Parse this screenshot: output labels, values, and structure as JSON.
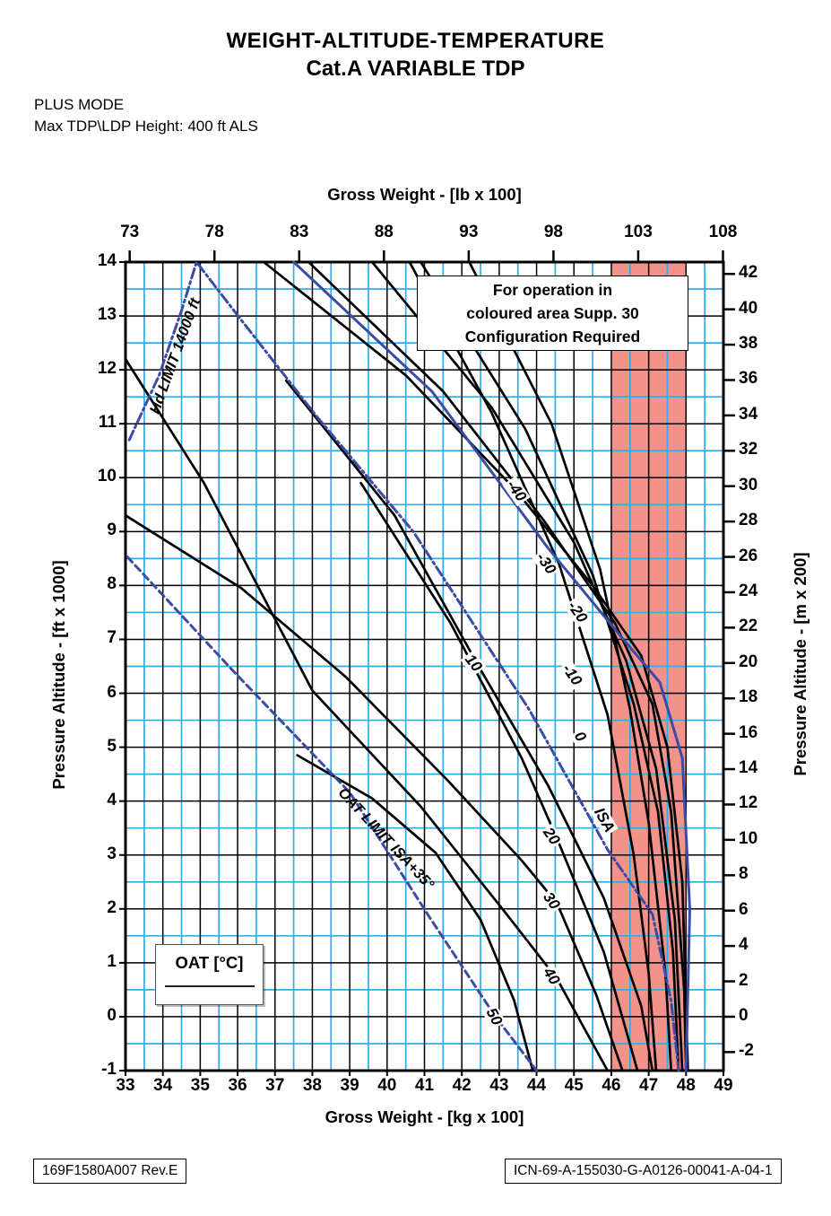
{
  "header": {
    "title_line1": "WEIGHT-ALTITUDE-TEMPERATURE",
    "title_line2": "Cat.A VARIABLE TDP",
    "mode_line": "PLUS MODE",
    "height_line": "Max TDP\\LDP Height: 400 ft ALS"
  },
  "note_box": {
    "line1": "For operation in",
    "line2": "coloured area Supp. 30",
    "line3": "Configuration Required"
  },
  "legend_box": {
    "title": "OAT [°C]"
  },
  "footer": {
    "left_ref": "169F1580A007 Rev.E",
    "right_ref": "ICN-69-A-155030-G-A0126-00041-A-04-1"
  },
  "chart_data": {
    "type": "line",
    "title": "WEIGHT-ALTITUDE-TEMPERATURE Cat.A VARIABLE TDP",
    "axes": {
      "bottom": {
        "label": "Gross Weight - [kg x 100]",
        "range": [
          33,
          49
        ],
        "ticks": [
          33,
          34,
          35,
          36,
          37,
          38,
          39,
          40,
          41,
          42,
          43,
          44,
          45,
          46,
          47,
          48,
          49
        ]
      },
      "top": {
        "label": "Gross Weight - [lb x 100]",
        "ticks": [
          73,
          78,
          83,
          88,
          93,
          98,
          103,
          108
        ]
      },
      "left": {
        "label": "Pressure Altitude - [ft x 1000]",
        "range": [
          -1,
          14
        ],
        "ticks": [
          14,
          13,
          12,
          11,
          10,
          9,
          8,
          7,
          6,
          5,
          4,
          3,
          2,
          1,
          0,
          -1
        ]
      },
      "right": {
        "label": "Pressure Altitude - [m x 200]",
        "ticks": [
          42,
          40,
          38,
          36,
          34,
          32,
          30,
          28,
          26,
          24,
          22,
          20,
          18,
          16,
          14,
          12,
          10,
          8,
          6,
          4,
          2,
          0,
          -2
        ]
      }
    },
    "grid": {
      "major_step": 1,
      "minor_step": 0.5,
      "major_color": "#000000",
      "minor_color": "#2eade6"
    },
    "shaded_region": {
      "x_from": 46,
      "x_to": 48,
      "color": "#f2928b",
      "meaning": "coloured area requiring Supp. 30 Configuration"
    },
    "series": [
      {
        "name": "oat-minus-40",
        "label": "-40",
        "color": "#000000",
        "points": [
          [
            36.7,
            14
          ],
          [
            40.5,
            11.9
          ],
          [
            43.4,
            9.8
          ],
          [
            45.5,
            8.0
          ],
          [
            46.8,
            6.7
          ],
          [
            47.5,
            5.0
          ],
          [
            47.9,
            2.5
          ],
          [
            48.05,
            -1
          ]
        ],
        "label_pos": [
          43.45,
          9.75
        ],
        "label_rot": 55
      },
      {
        "name": "oat-minus-30",
        "label": "-30",
        "color": "#000000",
        "points": [
          [
            37.9,
            14
          ],
          [
            41.5,
            11.6
          ],
          [
            44.2,
            9.2
          ],
          [
            46.1,
            7.3
          ],
          [
            47.1,
            5.8
          ],
          [
            47.6,
            3.8
          ],
          [
            47.95,
            0.5
          ],
          [
            48.0,
            -1
          ]
        ],
        "label_pos": [
          44.25,
          8.4
        ],
        "label_rot": 55
      },
      {
        "name": "oat-minus-20",
        "label": "-20",
        "color": "#000000",
        "points": [
          [
            39.6,
            14
          ],
          [
            42.8,
            11.3
          ],
          [
            45.0,
            8.8
          ],
          [
            46.4,
            6.6
          ],
          [
            47.2,
            4.6
          ],
          [
            47.7,
            1.8
          ],
          [
            47.9,
            -1
          ]
        ],
        "label_pos": [
          45.1,
          7.5
        ],
        "label_rot": 55
      },
      {
        "name": "oat-minus-10",
        "label": "-10",
        "color": "#000000",
        "points": [
          [
            40.9,
            14
          ],
          [
            43.7,
            10.9
          ],
          [
            45.5,
            8.2
          ],
          [
            46.6,
            5.8
          ],
          [
            47.25,
            3.8
          ],
          [
            47.65,
            1.2
          ],
          [
            47.8,
            -1
          ]
        ],
        "label_pos": [
          44.95,
          6.35
        ],
        "label_rot": 55
      },
      {
        "name": "oat-0",
        "label": "0",
        "color": "#000000",
        "points": [
          [
            42.2,
            14
          ],
          [
            44.4,
            11.0
          ],
          [
            45.7,
            8.3
          ],
          [
            46.5,
            5.7
          ],
          [
            47.0,
            3.6
          ],
          [
            47.45,
            0.8
          ],
          [
            47.6,
            -1
          ]
        ],
        "label_pos": [
          45.15,
          5.2
        ],
        "label_rot": 58
      },
      {
        "name": "isa-line",
        "label": "ISA",
        "color": "#000000",
        "points": [
          [
            40.6,
            14
          ],
          [
            42.8,
            11.2
          ],
          [
            44.6,
            8.4
          ],
          [
            45.9,
            5.6
          ],
          [
            46.6,
            3.0
          ],
          [
            47.0,
            0.8
          ],
          [
            47.2,
            -1
          ]
        ],
        "label_pos": [
          45.8,
          3.65
        ],
        "label_rot": 60
      },
      {
        "name": "oat-10",
        "label": "10",
        "color": "#000000",
        "points": [
          [
            37.3,
            11.8
          ],
          [
            40.2,
            9.3
          ],
          [
            42.45,
            6.5
          ],
          [
            44.3,
            4.3
          ],
          [
            45.8,
            2.2
          ],
          [
            46.8,
            0.2
          ],
          [
            47.1,
            -1
          ]
        ],
        "label_pos": [
          42.3,
          6.55
        ],
        "label_rot": 52
      },
      {
        "name": "oat-20",
        "label": "20",
        "color": "#000000",
        "points": [
          [
            39.3,
            9.9
          ],
          [
            41.7,
            7.3
          ],
          [
            43.6,
            4.8
          ],
          [
            44.55,
            3.3
          ],
          [
            45.8,
            1.2
          ],
          [
            46.7,
            -1
          ]
        ],
        "label_pos": [
          44.4,
          3.35
        ],
        "label_rot": 55
      },
      {
        "name": "oat-30",
        "label": "30",
        "color": "#000000",
        "points": [
          [
            33.0,
            9.3
          ],
          [
            36.1,
            7.95
          ],
          [
            38.9,
            6.3
          ],
          [
            41.6,
            4.4
          ],
          [
            43.6,
            2.9
          ],
          [
            44.55,
            2.1
          ],
          [
            45.6,
            0.4
          ],
          [
            46.3,
            -1
          ]
        ],
        "label_pos": [
          44.4,
          2.15
        ],
        "label_rot": 55
      },
      {
        "name": "oat-40",
        "label": "40",
        "color": "#000000",
        "points": [
          [
            33.0,
            12.2
          ],
          [
            35.1,
            9.9
          ],
          [
            38.0,
            6.05
          ],
          [
            40.9,
            3.9
          ],
          [
            43.2,
            1.9
          ],
          [
            44.55,
            0.7
          ],
          [
            45.9,
            -1
          ]
        ],
        "label_pos": [
          44.4,
          0.75
        ],
        "label_rot": 58
      },
      {
        "name": "oat-50",
        "label": "50",
        "color": "#000000",
        "points": [
          [
            37.6,
            4.85
          ],
          [
            39.6,
            4.05
          ],
          [
            41.3,
            3.04
          ],
          [
            42.5,
            1.8
          ],
          [
            43.4,
            0.3
          ],
          [
            43.9,
            -1
          ]
        ],
        "label_pos": [
          42.85,
          0.0
        ],
        "label_rot": 62
      }
    ],
    "limit_lines": [
      {
        "name": "envelope-boundary",
        "label": "",
        "style": "solid",
        "color": "#3a4ca6",
        "points": [
          [
            37.5,
            14
          ],
          [
            41.2,
            11.6
          ],
          [
            44.3,
            8.7
          ],
          [
            46.2,
            7.1
          ],
          [
            47.3,
            6.2
          ],
          [
            47.9,
            4.8
          ],
          [
            48.1,
            2.0
          ],
          [
            48.0,
            -1
          ]
        ]
      },
      {
        "name": "hd-limit",
        "label": "Hd LIMIT 14000 ft",
        "style": "dashdot",
        "color": "#3a4ca6",
        "points": [
          [
            33.1,
            10.7
          ],
          [
            33.9,
            11.9
          ],
          [
            34.5,
            13.1
          ],
          [
            34.9,
            14.0
          ],
          [
            35.9,
            13.1
          ],
          [
            38.1,
            11.15
          ],
          [
            40.7,
            9.0
          ],
          [
            43.8,
            5.7
          ],
          [
            45.9,
            3.1
          ],
          [
            47.1,
            1.9
          ],
          [
            47.6,
            0.3
          ],
          [
            47.8,
            -1
          ]
        ],
        "label_pos": [
          34.35,
          12.25
        ],
        "label_rot": -70
      },
      {
        "name": "oat-limit-isa35",
        "label": "OAT LIMIT ISA+35°",
        "style": "dashed",
        "color": "#3a4ca6",
        "points": [
          [
            33.05,
            8.53
          ],
          [
            35.9,
            6.4
          ],
          [
            39.0,
            4.16
          ],
          [
            41.15,
            1.83
          ],
          [
            42.9,
            0.0
          ],
          [
            44.0,
            -1
          ]
        ],
        "label_pos": [
          39.95,
          3.3
        ],
        "label_rot": 47
      }
    ],
    "legend": {
      "entry_label": "OAT [°C]",
      "position": "bottom-left-inside"
    },
    "unit_note": "x-axis also shown as Gross Weight - [lb x 100] on top; right axis Pressure Altitude - [m x 200]"
  }
}
